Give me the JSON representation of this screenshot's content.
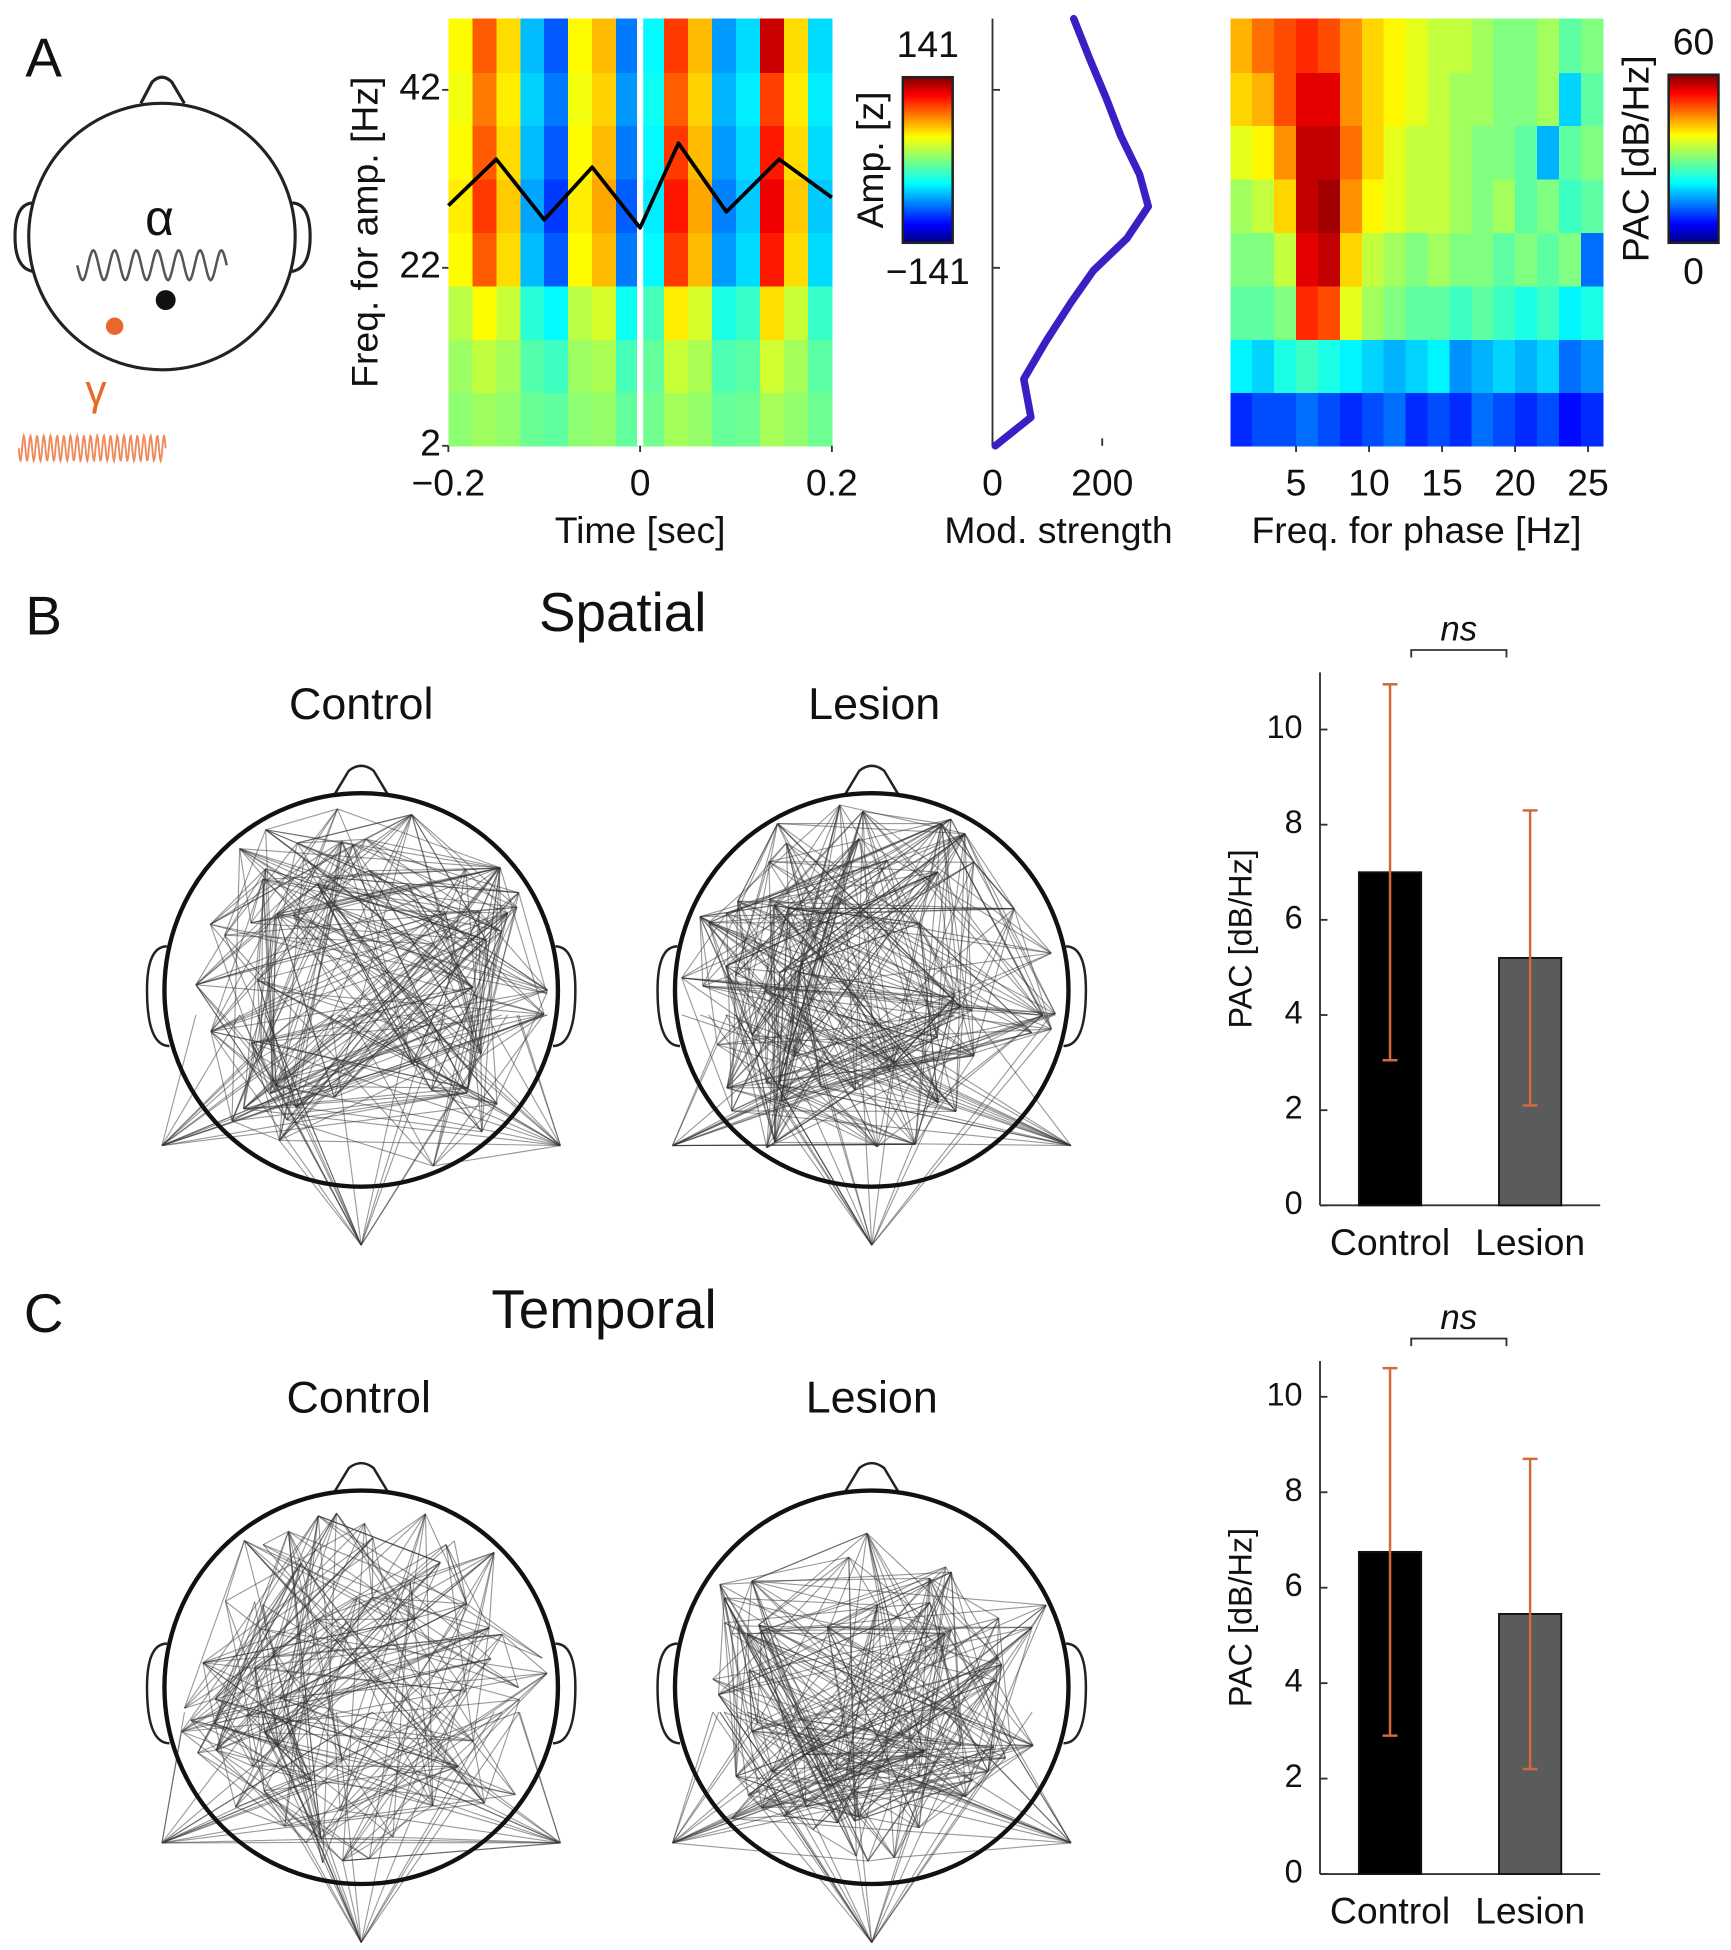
{
  "panel_labels": [
    "A",
    "B",
    "C"
  ],
  "schematic": {
    "alpha": "α",
    "gamma": "γ"
  },
  "spatial": {
    "title": "Spatial",
    "groups": [
      "Control",
      "Lesion"
    ]
  },
  "temporal": {
    "title": "Temporal",
    "groups": [
      "Control",
      "Lesion"
    ]
  },
  "chart_data": [
    {
      "type": "heatmap",
      "xlabel": "Time [sec]",
      "ylabel": "Freq. for amp. [Hz]",
      "x_bins": [
        -0.2,
        -0.175,
        -0.15,
        -0.125,
        -0.1,
        -0.075,
        -0.05,
        -0.025,
        0,
        0.025,
        0.05,
        0.075,
        0.1,
        0.125,
        0.15,
        0.175,
        0.2
      ],
      "y_bins": [
        2,
        8,
        14,
        20,
        26,
        32,
        38,
        44,
        50
      ],
      "values": [
        [
          4,
          9,
          5,
          -6,
          -9,
          4,
          6,
          -8,
          -4,
          10,
          6,
          -7,
          -5,
          11,
          5,
          -5
        ],
        [
          8,
          18,
          10,
          -12,
          -18,
          8,
          12,
          -16,
          -8,
          20,
          12,
          -14,
          -10,
          22,
          10,
          -10
        ],
        [
          16,
          36,
          20,
          -24,
          -36,
          16,
          24,
          -32,
          -16,
          40,
          24,
          -28,
          -20,
          44,
          20,
          -20
        ],
        [
          36,
          81,
          45,
          -54,
          -81,
          36,
          54,
          -72,
          -36,
          90,
          54,
          -63,
          -45,
          99,
          45,
          -45
        ],
        [
          40,
          90,
          50,
          -60,
          -90,
          40,
          60,
          -80,
          -40,
          100,
          60,
          -70,
          -50,
          110,
          50,
          -50
        ],
        [
          36,
          81,
          45,
          -54,
          -81,
          36,
          54,
          -72,
          -36,
          90,
          54,
          -63,
          -45,
          99,
          45,
          -45
        ],
        [
          32,
          72,
          40,
          -48,
          -72,
          32,
          48,
          -64,
          -32,
          80,
          48,
          -56,
          -40,
          88,
          40,
          -40
        ],
        [
          36,
          81,
          45,
          -54,
          -81,
          36,
          54,
          -72,
          -36,
          90,
          54,
          -63,
          -45,
          120,
          45,
          -45
        ]
      ],
      "xlim": [
        -0.2,
        0.2
      ],
      "ylim": [
        2,
        50
      ],
      "xticks": [
        {
          "value": -0.2,
          "label": "−0.2"
        },
        0,
        0.2
      ],
      "yticks": [
        2,
        22,
        42
      ],
      "colormap": "jet",
      "clim": [
        -141,
        141
      ],
      "colorbar_label": "Amp. [z]",
      "colorbar_ticks": [
        141,
        {
          "value": -141,
          "label": "−141"
        }
      ],
      "overlay": {
        "color": "#000000",
        "x": [
          -0.2,
          -0.15,
          -0.1,
          -0.05,
          0,
          0.04,
          0.09,
          0.145,
          0.2
        ],
        "values": [
          29.0,
          34.2,
          27.4,
          33.3,
          26.5,
          36.0,
          28.3,
          34.2,
          29.9
        ]
      },
      "vline": 0
    },
    {
      "type": "line",
      "orientation": "vertical",
      "xlabel": "Mod. strength",
      "y": [
        2.0,
        5.2,
        9.5,
        13.8,
        18.1,
        21.7,
        25.3,
        28.9,
        32.5,
        36.8,
        41.1,
        45.5,
        50.0
      ],
      "values": [
        5,
        70,
        57,
        98,
        143,
        184,
        245,
        284,
        268,
        234,
        207,
        177,
        148
      ],
      "color": "#3b1fc4",
      "xlim": [
        0,
        370
      ],
      "ylim": [
        2,
        50
      ],
      "xticks": [
        0,
        200
      ],
      "yticks": [
        22,
        42
      ]
    },
    {
      "type": "heatmap",
      "xlabel": "Freq. for phase [Hz]",
      "x_bins": [
        0.5,
        2,
        3.5,
        5,
        6.5,
        8,
        9.5,
        11,
        12.5,
        14,
        15.5,
        17,
        18.5,
        20,
        21.5,
        23,
        24.5,
        26
      ],
      "y_bins": [
        2,
        8,
        14,
        20,
        26,
        32,
        38,
        44,
        50
      ],
      "values": [
        [
          10,
          12,
          12,
          14,
          12,
          10,
          12,
          14,
          10,
          12,
          10,
          14,
          12,
          10,
          12,
          8,
          10
        ],
        [
          22,
          20,
          24,
          26,
          24,
          22,
          20,
          18,
          20,
          22,
          16,
          18,
          20,
          18,
          20,
          14,
          16
        ],
        [
          28,
          28,
          30,
          50,
          48,
          36,
          32,
          30,
          28,
          28,
          26,
          28,
          26,
          24,
          26,
          22,
          24
        ],
        [
          30,
          30,
          34,
          54,
          56,
          40,
          34,
          32,
          30,
          32,
          30,
          30,
          28,
          30,
          28,
          30,
          14
        ],
        [
          32,
          34,
          40,
          56,
          58,
          44,
          38,
          36,
          34,
          34,
          32,
          30,
          32,
          28,
          30,
          26,
          28
        ],
        [
          36,
          38,
          44,
          56,
          56,
          46,
          40,
          36,
          34,
          34,
          32,
          30,
          30,
          28,
          18,
          28,
          30
        ],
        [
          40,
          42,
          48,
          54,
          54,
          44,
          40,
          38,
          36,
          34,
          32,
          32,
          30,
          30,
          32,
          20,
          28
        ],
        [
          42,
          46,
          48,
          50,
          48,
          44,
          40,
          38,
          36,
          34,
          34,
          32,
          30,
          30,
          32,
          28,
          30
        ]
      ],
      "xlim": [
        0.5,
        26
      ],
      "ylim": [
        2,
        50
      ],
      "xticks": [
        5,
        10,
        15,
        20,
        25
      ],
      "colormap": "jet",
      "clim": [
        0,
        60
      ],
      "colorbar_label": "PAC [dB/Hz]",
      "colorbar_ticks": [
        60,
        0
      ]
    },
    {
      "type": "bar",
      "ylabel": "PAC [dB/Hz]",
      "categories": [
        "Control",
        "Lesion"
      ],
      "values": [
        7.0,
        5.2
      ],
      "errors": [
        3.95,
        3.1
      ],
      "colors": [
        "#000000",
        "#5b5b5b"
      ],
      "error_color": "#d2693c",
      "ylim": [
        0,
        11.2
      ],
      "yticks": [
        0,
        2,
        4,
        6,
        8,
        10
      ],
      "annotation": "ns"
    },
    {
      "type": "bar",
      "ylabel": "PAC [dB/Hz]",
      "categories": [
        "Control",
        "Lesion"
      ],
      "values": [
        6.75,
        5.45
      ],
      "errors": [
        3.85,
        3.25
      ],
      "colors": [
        "#000000",
        "#5b5b5b"
      ],
      "error_color": "#d2693c",
      "ylim": [
        0,
        10.75
      ],
      "yticks": [
        0,
        2,
        4,
        6,
        8,
        10
      ],
      "annotation": "ns"
    }
  ]
}
